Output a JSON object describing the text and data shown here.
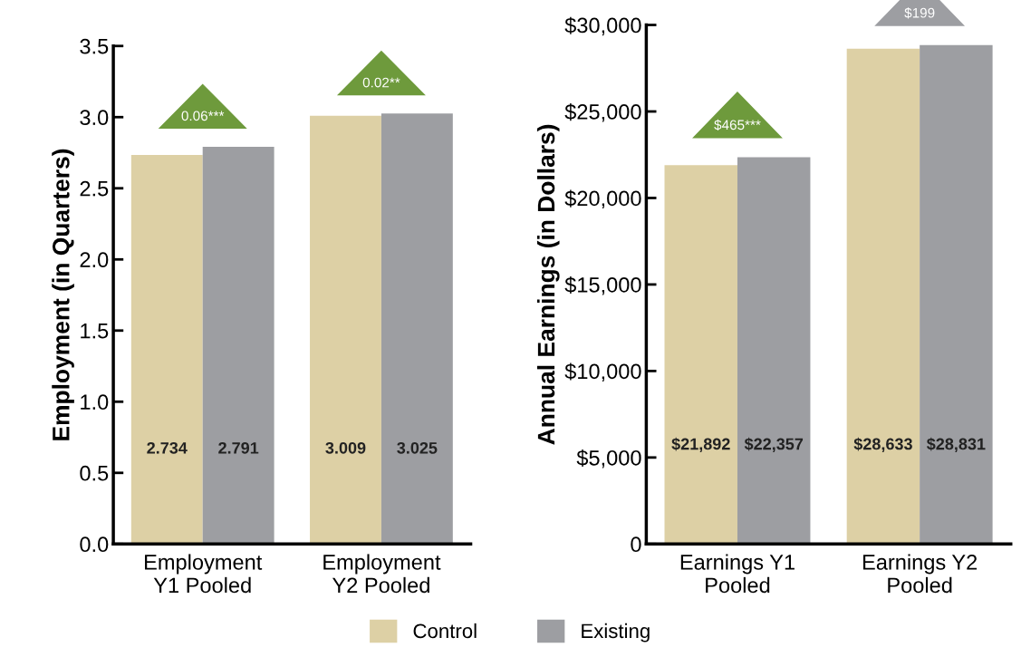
{
  "chart_data": [
    {
      "type": "bar",
      "ylabel": "Employment (in Quarters)",
      "categories": [
        "Employment\nY1 Pooled",
        "Employment\nY2 Pooled"
      ],
      "series": [
        {
          "name": "Control",
          "color": "#ddd0a5",
          "values": [
            2.734,
            3.009
          ]
        },
        {
          "name": "Existing",
          "color": "#9d9ea2",
          "values": [
            2.791,
            3.025
          ]
        }
      ],
      "data_labels": true,
      "ylim": [
        0,
        3.5
      ],
      "yticks": [
        {
          "value": 0,
          "label": "0.0"
        },
        {
          "value": 0.5,
          "label": "0.5"
        },
        {
          "value": 1,
          "label": "1.0"
        },
        {
          "value": 1.5,
          "label": "1.5"
        },
        {
          "value": 2,
          "label": "2.0"
        },
        {
          "value": 2.5,
          "label": "2.5"
        },
        {
          "value": 3,
          "label": "3.0"
        },
        {
          "value": 3.5,
          "label": "3.5"
        }
      ],
      "annotations": [
        "0.06***",
        "0.02**"
      ],
      "grid": false,
      "legend": "bottom"
    },
    {
      "type": "bar",
      "ylabel": "Annual Earnings (in Dollars)",
      "categories": [
        "Earnings Y1\nPooled",
        "Earnings Y2\nPooled"
      ],
      "series": [
        {
          "name": "Control",
          "color": "#ddd0a5",
          "values": [
            21892,
            28633
          ],
          "value_labels": [
            "$21,892",
            "$28,633"
          ]
        },
        {
          "name": "Existing",
          "color": "#9d9ea2",
          "values": [
            22357,
            28831
          ],
          "value_labels": [
            "$22,357",
            "$28,831"
          ]
        }
      ],
      "ylim": [
        0,
        30000
      ],
      "yticks": [
        {
          "value": 0,
          "label": "0"
        },
        {
          "value": 5000,
          "label": "$5,000"
        },
        {
          "value": 10000,
          "label": "$10,000"
        },
        {
          "value": 15000,
          "label": "$15,000"
        },
        {
          "value": 20000,
          "label": "$20,000"
        },
        {
          "value": 25000,
          "label": "$25,000"
        },
        {
          "value": 30000,
          "label": "$30,000"
        }
      ],
      "annotations": [
        "$465***",
        "$199"
      ],
      "grid": false,
      "legend": "bottom"
    }
  ]
}
